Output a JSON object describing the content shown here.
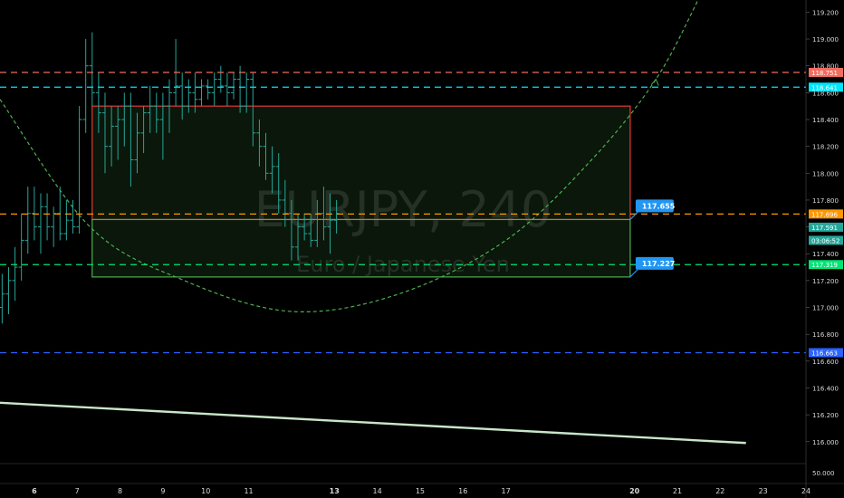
{
  "watermark": {
    "symbol": "EURJPY, 240",
    "description": "Euro / Japanese Yen"
  },
  "chart_data": {
    "type": "candlestick",
    "symbol": "EURJPY",
    "interval": "240",
    "ylim": [
      115.85,
      119.25
    ],
    "y_ticks": [
      "119.200",
      "119.000",
      "118.800",
      "118.600",
      "118.400",
      "118.200",
      "118.000",
      "117.800",
      "117.600",
      "117.400",
      "117.200",
      "117.000",
      "116.800",
      "116.600",
      "116.400",
      "116.200",
      "116.000"
    ],
    "volume_label": "50.000",
    "x_ticks": [
      "6",
      "7",
      "8",
      "9",
      "10",
      "11",
      "13",
      "14",
      "15",
      "16",
      "17",
      "20",
      "21",
      "22",
      "23",
      "24"
    ],
    "x_range": [
      5.2,
      24
    ],
    "candle_color": "#26a69a",
    "candles": [
      [
        5.25,
        117.0,
        117.25,
        116.88,
        117.1
      ],
      [
        5.4,
        117.1,
        117.3,
        116.95,
        117.2
      ],
      [
        5.55,
        117.2,
        117.45,
        117.05,
        117.3
      ],
      [
        5.7,
        117.3,
        117.7,
        117.2,
        117.5
      ],
      [
        5.85,
        117.5,
        117.9,
        117.4,
        117.7
      ],
      [
        6.0,
        117.7,
        117.9,
        117.5,
        117.6
      ],
      [
        6.15,
        117.6,
        117.85,
        117.4,
        117.75
      ],
      [
        6.3,
        117.75,
        117.85,
        117.5,
        117.6
      ],
      [
        6.45,
        117.6,
        117.75,
        117.45,
        117.7
      ],
      [
        6.6,
        117.7,
        117.9,
        117.5,
        117.55
      ],
      [
        6.75,
        117.55,
        117.8,
        117.5,
        117.65
      ],
      [
        6.9,
        117.65,
        117.8,
        117.55,
        117.6
      ],
      [
        7.05,
        117.6,
        118.5,
        117.55,
        118.4
      ],
      [
        7.2,
        118.4,
        119.0,
        118.3,
        118.8
      ],
      [
        7.35,
        118.8,
        119.05,
        118.5,
        118.6
      ],
      [
        7.5,
        118.6,
        118.75,
        118.3,
        118.45
      ],
      [
        7.65,
        118.45,
        118.6,
        118.0,
        118.2
      ],
      [
        7.8,
        118.2,
        118.5,
        118.05,
        118.35
      ],
      [
        7.95,
        118.35,
        118.5,
        118.1,
        118.4
      ],
      [
        8.1,
        118.4,
        118.6,
        118.2,
        118.5
      ],
      [
        8.25,
        118.5,
        118.6,
        117.9,
        118.1
      ],
      [
        8.4,
        118.1,
        118.45,
        118.0,
        118.3
      ],
      [
        8.55,
        118.3,
        118.5,
        118.15,
        118.45
      ],
      [
        8.7,
        118.45,
        118.65,
        118.3,
        118.5
      ],
      [
        8.85,
        118.5,
        118.6,
        118.3,
        118.4
      ],
      [
        9.0,
        118.4,
        118.6,
        118.1,
        118.5
      ],
      [
        9.15,
        118.5,
        118.7,
        118.3,
        118.6
      ],
      [
        9.3,
        118.6,
        119.0,
        118.5,
        118.65
      ],
      [
        9.45,
        118.65,
        118.75,
        118.4,
        118.5
      ],
      [
        9.6,
        118.5,
        118.7,
        118.45,
        118.6
      ],
      [
        9.75,
        118.6,
        118.75,
        118.45,
        118.55
      ],
      [
        9.9,
        118.55,
        118.7,
        118.5,
        118.65
      ],
      [
        10.05,
        118.65,
        118.7,
        118.55,
        118.6
      ],
      [
        10.2,
        118.6,
        118.75,
        118.5,
        118.7
      ],
      [
        10.35,
        118.7,
        118.8,
        118.6,
        118.65
      ],
      [
        10.5,
        118.65,
        118.75,
        118.5,
        118.6
      ],
      [
        10.65,
        118.6,
        118.75,
        118.55,
        118.7
      ],
      [
        10.8,
        118.7,
        118.8,
        118.45,
        118.5
      ],
      [
        10.95,
        118.5,
        118.75,
        118.45,
        118.7
      ],
      [
        11.1,
        118.7,
        118.75,
        118.2,
        118.3
      ],
      [
        11.25,
        118.3,
        118.4,
        118.05,
        118.2
      ],
      [
        11.4,
        118.2,
        118.3,
        117.95,
        118.0
      ],
      [
        11.55,
        118.0,
        118.2,
        117.85,
        118.05
      ],
      [
        11.7,
        118.05,
        118.15,
        117.7,
        117.8
      ],
      [
        11.85,
        117.8,
        117.95,
        117.6,
        117.7
      ],
      [
        12.0,
        117.7,
        117.8,
        117.35,
        117.45
      ],
      [
        12.15,
        117.45,
        117.7,
        117.35,
        117.6
      ],
      [
        12.3,
        117.6,
        117.7,
        117.5,
        117.55
      ],
      [
        12.45,
        117.55,
        117.7,
        117.45,
        117.5
      ],
      [
        12.6,
        117.5,
        117.8,
        117.45,
        117.7
      ],
      [
        12.75,
        117.7,
        117.9,
        117.5,
        117.6
      ],
      [
        12.9,
        117.6,
        117.85,
        117.4,
        117.65
      ],
      [
        13.05,
        117.65,
        117.8,
        117.55,
        117.7
      ]
    ],
    "horizontal_lines": [
      {
        "price": 118.751,
        "label": "118.751",
        "color": "#f36c60"
      },
      {
        "price": 118.641,
        "label": "118.641",
        "color": "#00e5ff"
      },
      {
        "price": 117.696,
        "label": "117.696",
        "color": "#ff9800"
      },
      {
        "price": 117.319,
        "label": "117.319",
        "color": "#00e676"
      },
      {
        "price": 116.663,
        "label": "116.663",
        "color": "#2962ff"
      }
    ],
    "price_badges": [
      {
        "price": 117.591,
        "label": "117.591",
        "color": "#26a69a"
      },
      {
        "price": 117.52,
        "label": "03:06:52",
        "color": "#26a69a"
      }
    ],
    "boxes": [
      {
        "x0": 7.35,
        "x1": 19.9,
        "y_top": 118.5,
        "y_bottom": 117.655,
        "stroke": "#e53935",
        "fill": "rgba(76,175,80,0.13)"
      },
      {
        "x0": 7.35,
        "x1": 19.9,
        "y_top": 117.655,
        "y_bottom": 117.227,
        "stroke": "#4caf50",
        "fill": "rgba(76,175,80,0.13)"
      }
    ],
    "callouts": [
      {
        "price": 117.655,
        "label": "117.655",
        "color": "#2196f3"
      },
      {
        "price": 117.227,
        "label": "117.227",
        "color": "#2196f3"
      }
    ],
    "curve": {
      "color": "#4caf50",
      "points": [
        [
          5.2,
          118.55
        ],
        [
          7.3,
          117.6
        ],
        [
          9.5,
          117.2
        ],
        [
          12.0,
          116.97
        ],
        [
          14.5,
          117.1
        ],
        [
          17.0,
          117.5
        ],
        [
          19.0,
          118.1
        ],
        [
          20.5,
          118.7
        ],
        [
          21.5,
          119.3
        ]
      ]
    },
    "trendline": {
      "color": "#c8e6c9",
      "points": [
        [
          5.2,
          116.29
        ],
        [
          22.6,
          115.99
        ]
      ]
    }
  }
}
